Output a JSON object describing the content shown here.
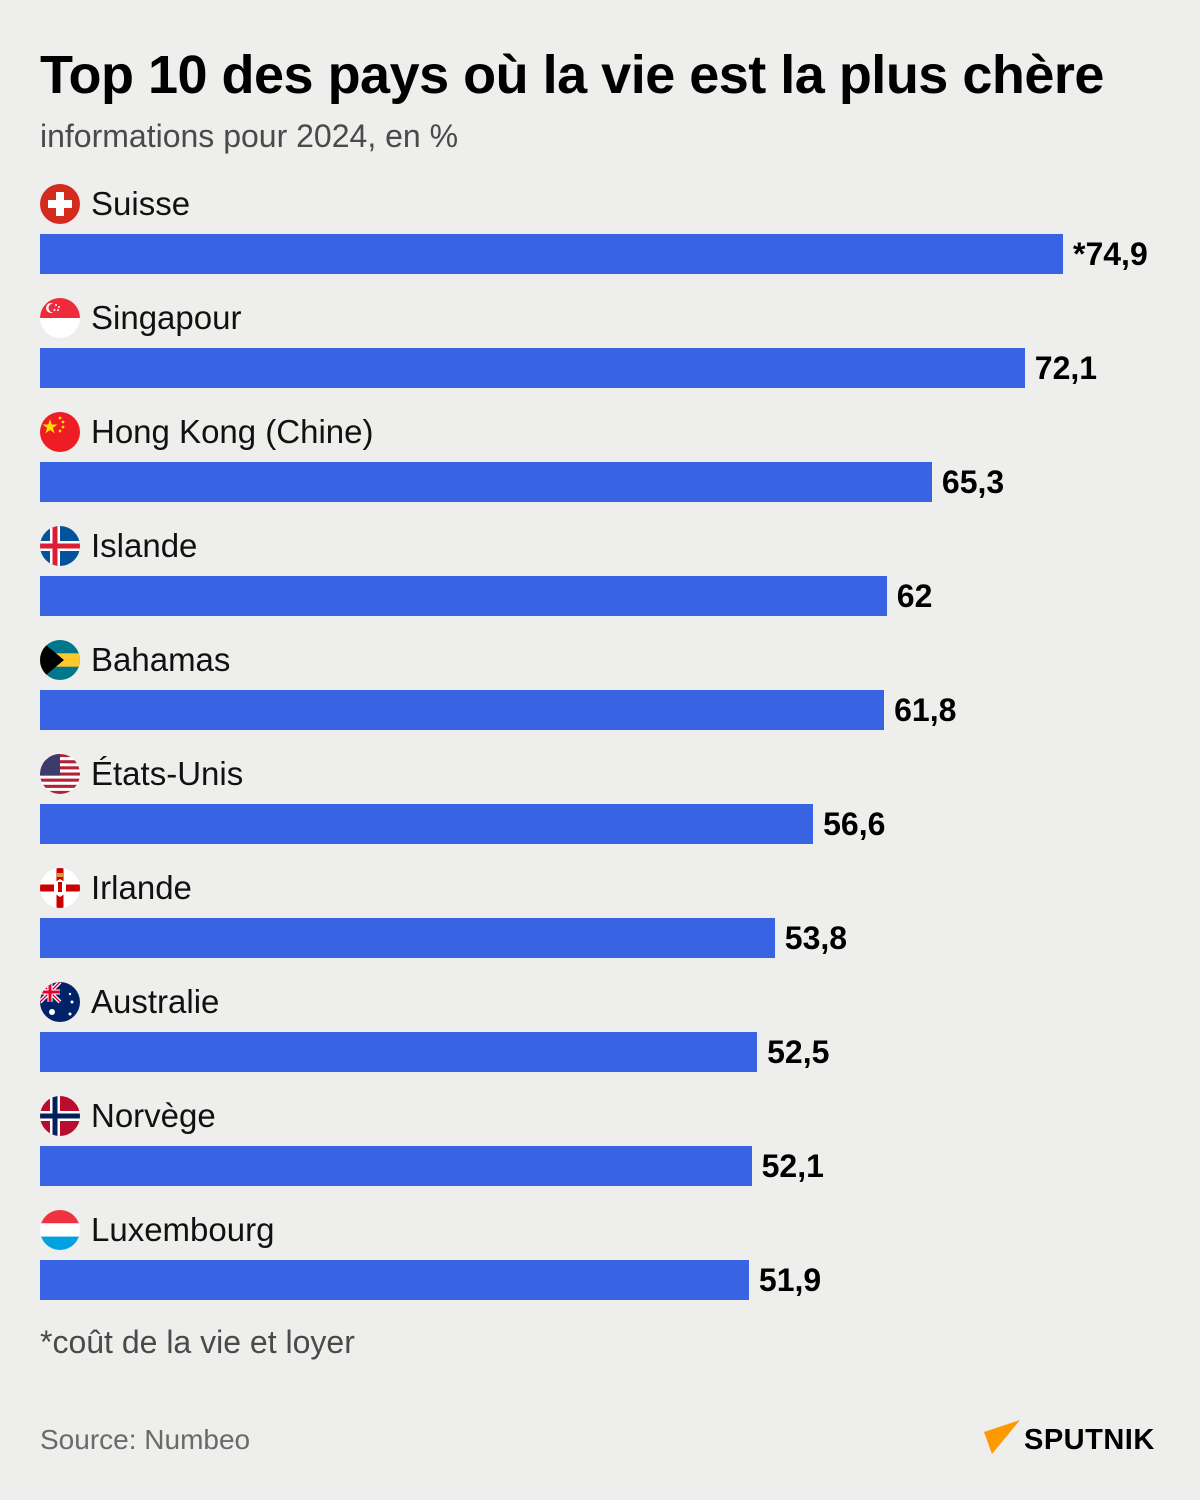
{
  "header": {
    "title": "Top 10 des pays où la vie est la plus chère",
    "subtitle": "informations pour 2024, en %"
  },
  "footer": {
    "note": "*coût de la vie et loyer",
    "source": "Source: Numbeo",
    "logo_text": "SPUTNIK"
  },
  "colors": {
    "bar": "#3864e3",
    "background": "#eeeeec",
    "logo_accent": "#ff9900"
  },
  "chart_data": {
    "type": "bar",
    "orientation": "horizontal",
    "title": "Top 10 des pays où la vie est la plus chère",
    "subtitle": "informations pour 2024, en %",
    "xlabel": "",
    "ylabel": "",
    "categories": [
      "Suisse",
      "Singapour",
      "Hong Kong (Chine)",
      "Islande",
      "Bahamas",
      "États-Unis",
      "Irlande",
      "Australie",
      "Norvège",
      "Luxembourg"
    ],
    "values": [
      74.9,
      72.1,
      65.3,
      62,
      61.8,
      56.6,
      53.8,
      52.5,
      52.1,
      51.9
    ],
    "value_labels": [
      "*74,9",
      "72,1",
      "65,3",
      "62",
      "61,8",
      "56,6",
      "53,8",
      "52,5",
      "52,1",
      "51,9"
    ],
    "annotations": [
      "*coût de la vie et loyer"
    ],
    "source": "Source: Numbeo",
    "grid": false,
    "legend": null
  },
  "rows": [
    {
      "country": "Suisse",
      "flag": "switzerland-flag-icon",
      "value": 74.9,
      "label": "*74,9"
    },
    {
      "country": "Singapour",
      "flag": "singapore-flag-icon",
      "value": 72.1,
      "label": "72,1"
    },
    {
      "country": "Hong Kong (Chine)",
      "flag": "china-flag-icon",
      "value": 65.3,
      "label": "65,3"
    },
    {
      "country": "Islande",
      "flag": "iceland-flag-icon",
      "value": 62,
      "label": "62"
    },
    {
      "country": "Bahamas",
      "flag": "bahamas-flag-icon",
      "value": 61.8,
      "label": "61,8"
    },
    {
      "country": "États-Unis",
      "flag": "usa-flag-icon",
      "value": 56.6,
      "label": "56,6"
    },
    {
      "country": "Irlande",
      "flag": "northern-ireland-flag-icon",
      "value": 53.8,
      "label": "53,8"
    },
    {
      "country": "Australie",
      "flag": "australia-flag-icon",
      "value": 52.5,
      "label": "52,5"
    },
    {
      "country": "Norvège",
      "flag": "norway-flag-icon",
      "value": 52.1,
      "label": "52,1"
    },
    {
      "country": "Luxembourg",
      "flag": "luxembourg-flag-icon",
      "value": 51.9,
      "label": "51,9"
    }
  ]
}
